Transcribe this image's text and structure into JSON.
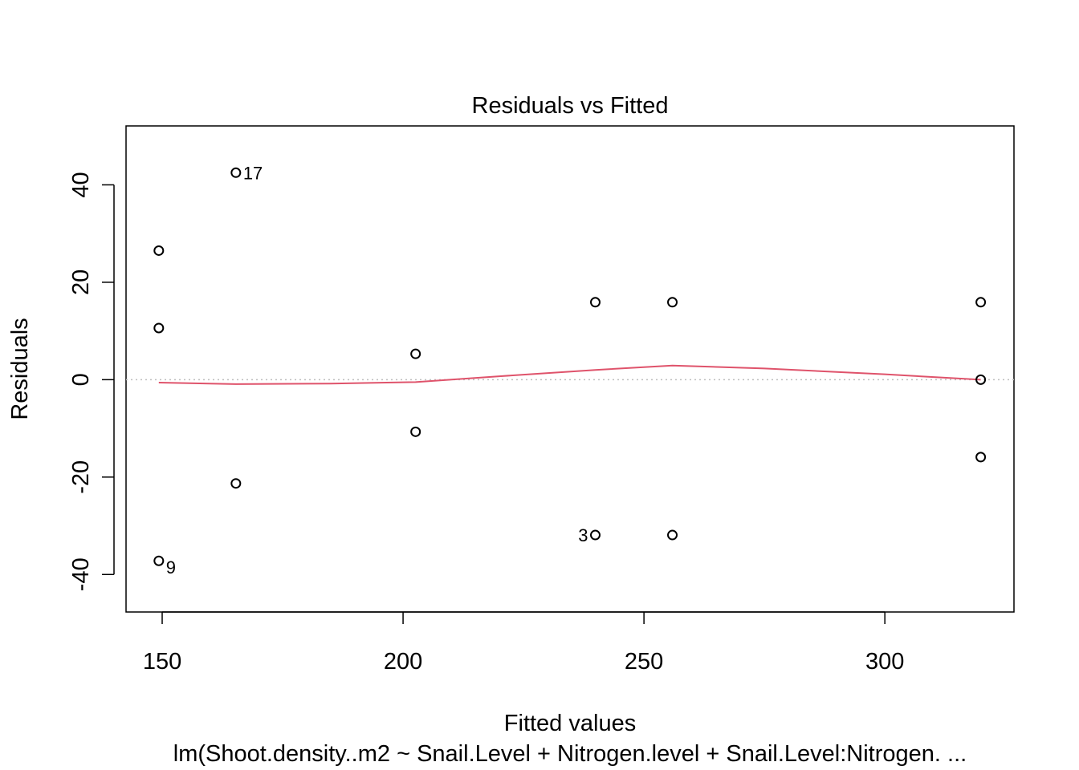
{
  "chart_data": {
    "type": "scatter",
    "title": "Residuals vs Fitted",
    "xlabel": "Fitted values",
    "ylabel": "Residuals",
    "subtitle": "lm(Shoot.density..m2 ~ Snail.Level + Nitrogen.level + Snail.Level:Nitrogen. ...",
    "xlim": [
      142.5,
      326.8
    ],
    "ylim": [
      -47.7,
      52.1
    ],
    "x_ticks": [
      150,
      200,
      250,
      300
    ],
    "y_ticks": [
      -40,
      -20,
      0,
      20,
      40
    ],
    "grid": false,
    "reference_line": {
      "y": 0,
      "style": "dotted",
      "color": "#bebebe"
    },
    "points": [
      {
        "x": 165.3,
        "y": 42.5,
        "label": "17"
      },
      {
        "x": 149.3,
        "y": 26.5,
        "label": ""
      },
      {
        "x": 149.3,
        "y": 10.6,
        "label": ""
      },
      {
        "x": 149.3,
        "y": -37.2,
        "label": "9"
      },
      {
        "x": 165.3,
        "y": -21.3,
        "label": ""
      },
      {
        "x": 202.6,
        "y": 5.3,
        "label": ""
      },
      {
        "x": 202.6,
        "y": -10.7,
        "label": ""
      },
      {
        "x": 239.9,
        "y": 15.9,
        "label": ""
      },
      {
        "x": 239.9,
        "y": -31.9,
        "label": "3"
      },
      {
        "x": 255.9,
        "y": 15.9,
        "label": ""
      },
      {
        "x": 255.9,
        "y": -31.9,
        "label": ""
      },
      {
        "x": 319.9,
        "y": 15.9,
        "label": ""
      },
      {
        "x": 319.9,
        "y": 0.0,
        "label": ""
      },
      {
        "x": 319.9,
        "y": -15.9,
        "label": ""
      }
    ],
    "smoother": {
      "color": "#DF536B",
      "x": [
        149.3,
        165.3,
        185.0,
        202.6,
        220.0,
        239.9,
        255.9,
        275.0,
        300.0,
        319.9
      ],
      "y": [
        -0.6,
        -0.9,
        -0.8,
        -0.5,
        0.7,
        2.0,
        2.9,
        2.3,
        1.1,
        0.0
      ]
    }
  }
}
